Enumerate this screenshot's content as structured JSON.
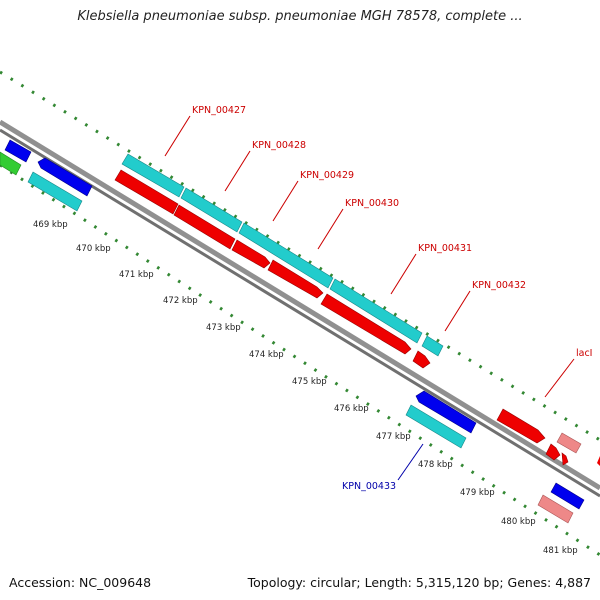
{
  "title": "Klebsiella pneumoniae subsp. pneumoniae MGH 78578, complete ...",
  "footer": {
    "accession": "Accession: NC_009648",
    "summary": "Topology: circular; Length: 5,315,120 bp; Genes: 4,887"
  },
  "ticks": [
    "469 kbp",
    "470 kbp",
    "471 kbp",
    "472 kbp",
    "473 kbp",
    "474 kbp",
    "475 kbp",
    "476 kbp",
    "477 kbp",
    "478 kbp",
    "479 kbp",
    "480 kbp",
    "481 kbp"
  ],
  "gene_labels": {
    "forward": [
      "KPN_00427",
      "KPN_00428",
      "KPN_00429",
      "KPN_00430",
      "KPN_00431",
      "KPN_00432",
      "lacI"
    ],
    "reverse": [
      "KPN_00433"
    ]
  },
  "colors": {
    "forward_label": "#cc0000",
    "reverse_label": "#0000aa",
    "cds_forward": "#ee0000",
    "cds_reverse": "#0000ee",
    "gene": "#22cccc",
    "pseudo_or_rna": "#ee8888",
    "other": "#33cc33",
    "backbone": "#888888",
    "tick_dots": "#338833"
  }
}
